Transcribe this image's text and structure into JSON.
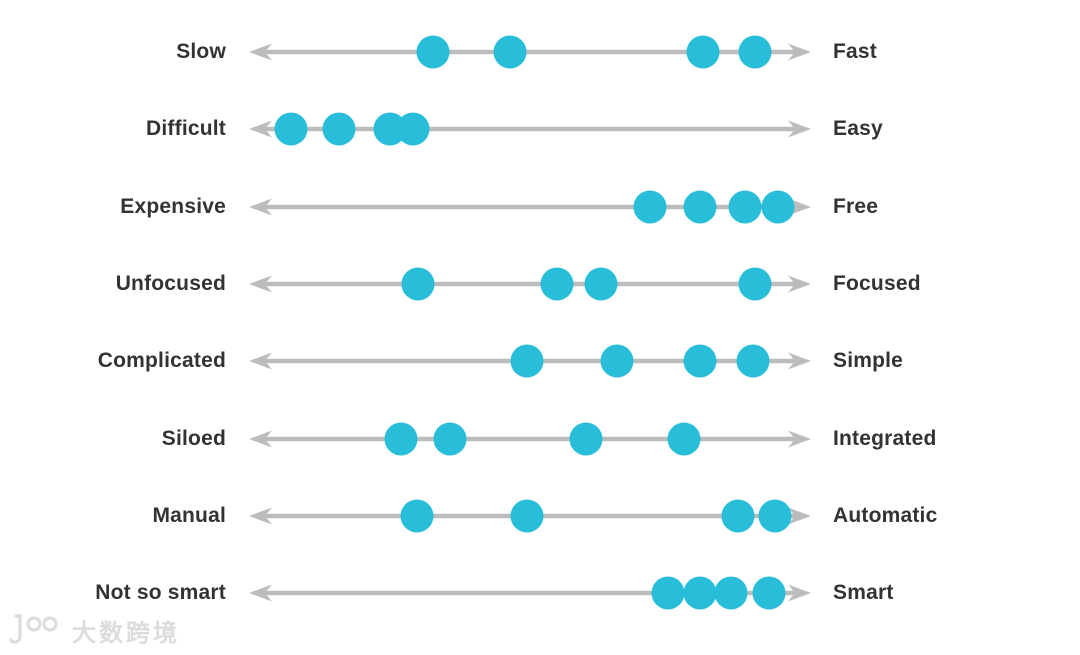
{
  "colors": {
    "dot": "#28BDD8",
    "line": "#BCBCBC",
    "label": "#333333",
    "watermark": "#D6D6D6"
  },
  "watermark": {
    "logo": "100",
    "text": "大数跨境"
  },
  "diagram": {
    "type": "dot-spectrum",
    "rows": [
      {
        "left": "Slow",
        "right": "Fast",
        "dots_pct": [
          32.8,
          46.5,
          80.7,
          89.9
        ]
      },
      {
        "left": "Difficult",
        "right": "Easy",
        "dots_pct": [
          7.6,
          16.1,
          25.2,
          29.3
        ]
      },
      {
        "left": "Expensive",
        "right": "Free",
        "dots_pct": [
          71.3,
          80.1,
          88.1,
          94.0
        ]
      },
      {
        "left": "Unfocused",
        "right": "Focused",
        "dots_pct": [
          30.1,
          54.8,
          62.6,
          89.9
        ]
      },
      {
        "left": "Complicated",
        "right": "Simple",
        "dots_pct": [
          49.5,
          65.4,
          80.1,
          89.5
        ]
      },
      {
        "left": "Siloed",
        "right": "Integrated",
        "dots_pct": [
          27.1,
          35.8,
          59.9,
          77.3
        ]
      },
      {
        "left": "Manual",
        "right": "Automatic",
        "dots_pct": [
          30.0,
          49.5,
          86.9,
          93.4
        ]
      },
      {
        "left": "Not so smart",
        "right": "Smart",
        "dots_pct": [
          74.5,
          80.1,
          85.6,
          92.4
        ]
      }
    ]
  }
}
